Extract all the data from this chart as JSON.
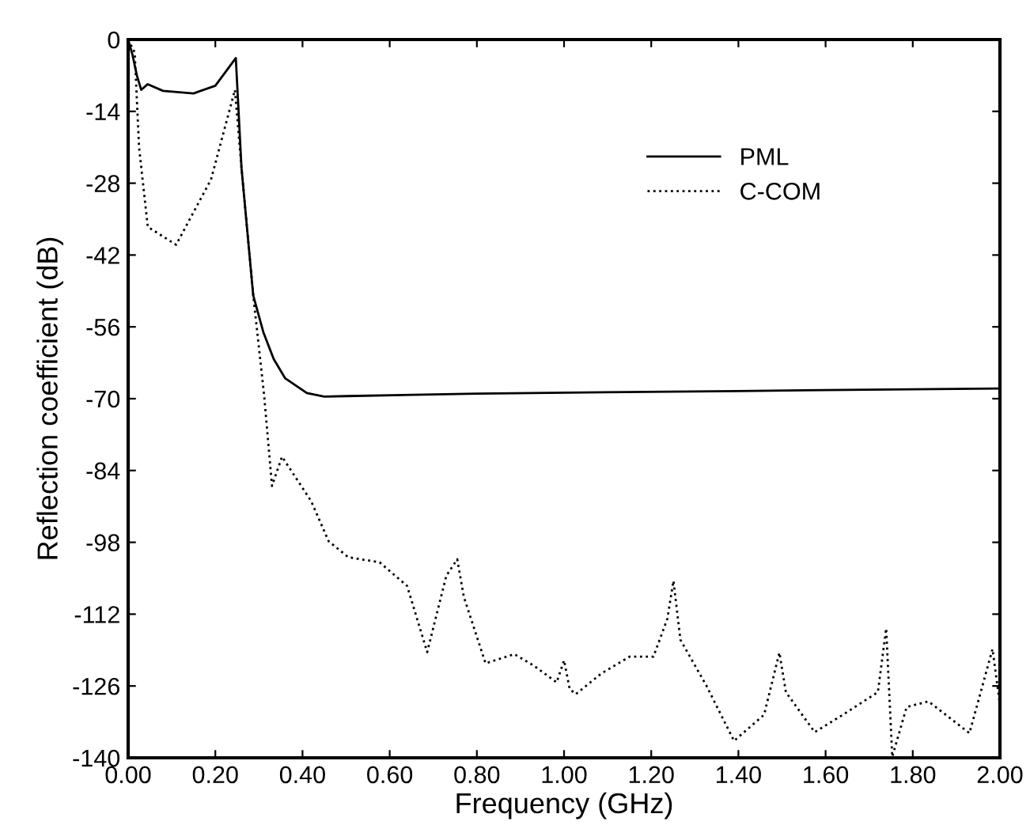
{
  "chart_data": {
    "type": "line",
    "xlabel": "Frequency (GHz)",
    "ylabel": "Reflection coefficient (dB)",
    "xlim": [
      0,
      2
    ],
    "xticks": [
      {
        "value": 0,
        "label": "0.00"
      },
      {
        "value": 0.2,
        "label": "0.20"
      },
      {
        "value": 0.4,
        "label": "0.40"
      },
      {
        "value": 0.6,
        "label": "0.60"
      },
      {
        "value": 0.8,
        "label": "0.80"
      },
      {
        "value": 1.0,
        "label": "1.00"
      },
      {
        "value": 1.2,
        "label": "1.20"
      },
      {
        "value": 1.4,
        "label": "1.40"
      },
      {
        "value": 1.6,
        "label": "1.60"
      },
      {
        "value": 1.8,
        "label": "1.80"
      },
      {
        "value": 2.0,
        "label": "2.00"
      }
    ],
    "ylim": [
      -140,
      0
    ],
    "yticks": [
      -140,
      -126,
      -112,
      -98,
      -84,
      -70,
      -56,
      -42,
      -28,
      -14,
      0
    ],
    "grid": false,
    "legend": "top right",
    "marker": "none",
    "series": [
      {
        "name": "PML",
        "color": "#000000",
        "line_style": "solid",
        "x": [
          0,
          0.01,
          0.02,
          0.03,
          0.045,
          0.08,
          0.15,
          0.2,
          0.247,
          0.26,
          0.287,
          0.31,
          0.334,
          0.36,
          0.41,
          0.45,
          0.5,
          0.8,
          1.4,
          2.0
        ],
        "values": [
          0,
          -3,
          -7,
          -9.8,
          -8.7,
          -10,
          -10.5,
          -9,
          -3.6,
          -25,
          -49.9,
          -57,
          -62.3,
          -66,
          -68.9,
          -69.6,
          -69.5,
          -69,
          -68.5,
          -68
        ]
      },
      {
        "name": "C-COM",
        "color": "#000000",
        "line_style": "dotted",
        "x": [
          0,
          0.015,
          0.025,
          0.045,
          0.11,
          0.19,
          0.245,
          0.26,
          0.287,
          0.312,
          0.33,
          0.353,
          0.42,
          0.46,
          0.505,
          0.577,
          0.64,
          0.686,
          0.73,
          0.755,
          0.77,
          0.82,
          0.886,
          0.93,
          0.983,
          1.0,
          1.013,
          1.027,
          1.085,
          1.15,
          1.205,
          1.237,
          1.251,
          1.267,
          1.327,
          1.39,
          1.459,
          1.494,
          1.509,
          1.575,
          1.64,
          1.72,
          1.739,
          1.753,
          1.786,
          1.836,
          1.93,
          1.983,
          1.999
        ],
        "values": [
          0,
          -2.5,
          -21,
          -36.5,
          -40,
          -27.3,
          -9.8,
          -25,
          -49.9,
          -69.4,
          -87,
          -81.3,
          -90,
          -97.8,
          -100.9,
          -101.9,
          -106.5,
          -119.4,
          -104.5,
          -101.3,
          -108.6,
          -121.6,
          -119.8,
          -122,
          -125.3,
          -121,
          -126.6,
          -127.6,
          -123.6,
          -120.3,
          -120.3,
          -112.9,
          -105.5,
          -117,
          -126,
          -136.7,
          -131.6,
          -119.5,
          -127.2,
          -135,
          -131.6,
          -127.2,
          -114.8,
          -139.8,
          -130.1,
          -129,
          -135.2,
          -118.8,
          -129
        ]
      }
    ]
  }
}
